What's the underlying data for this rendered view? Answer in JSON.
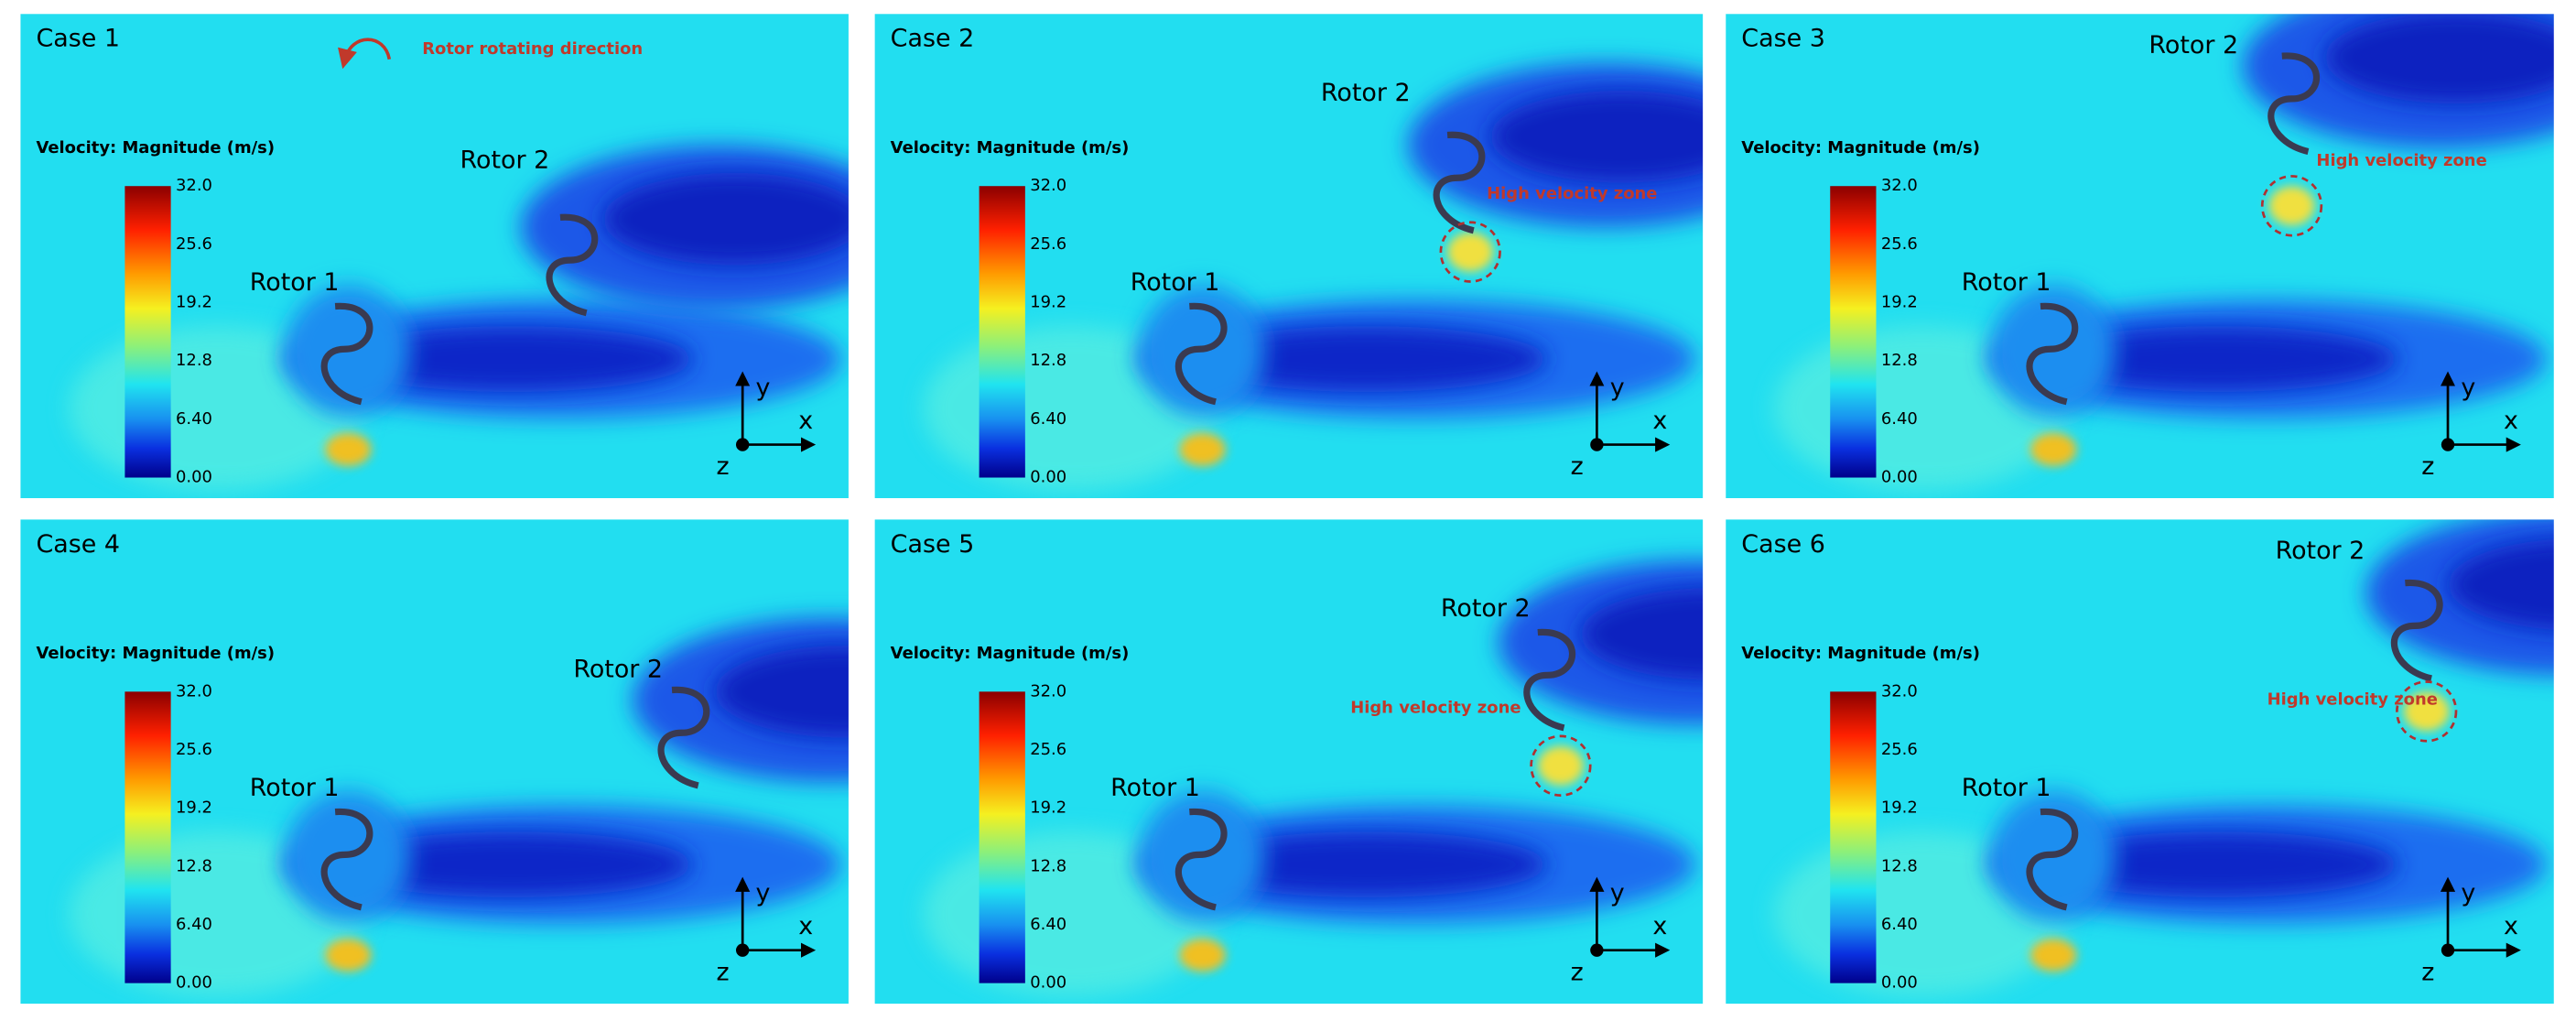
{
  "panels": [
    {
      "title": "Case 1",
      "rotor_1": "Rotor 1",
      "rotor_2": "Rotor 2",
      "colorbar": {
        "title": "Velocity: Magnitude (m/s)",
        "ticks": [
          "32.0",
          "25.6",
          "19.2",
          "12.8",
          "6.40",
          "0.00"
        ]
      },
      "axes": {
        "y": "y",
        "x": "x",
        "z": "z"
      },
      "annotation": "Rotor rotating direction"
    },
    {
      "title": "Case 2",
      "rotor_1": "Rotor 1",
      "rotor_2": "Rotor 2",
      "colorbar": {
        "title": "Velocity: Magnitude (m/s)",
        "ticks": [
          "32.0",
          "25.6",
          "19.2",
          "12.8",
          "6.40",
          "0.00"
        ]
      },
      "axes": {
        "y": "y",
        "x": "x",
        "z": "z"
      },
      "annotation": "High velocity zone"
    },
    {
      "title": "Case 3",
      "rotor_1": "Rotor 1",
      "rotor_2": "Rotor 2",
      "colorbar": {
        "title": "Velocity: Magnitude (m/s)",
        "ticks": [
          "32.0",
          "25.6",
          "19.2",
          "12.8",
          "6.40",
          "0.00"
        ]
      },
      "axes": {
        "y": "y",
        "x": "x",
        "z": "z"
      },
      "annotation": "High velocity zone"
    },
    {
      "title": "Case 4",
      "rotor_1": "Rotor 1",
      "rotor_2": "Rotor 2",
      "colorbar": {
        "title": "Velocity: Magnitude (m/s)",
        "ticks": [
          "32.0",
          "25.6",
          "19.2",
          "12.8",
          "6.40",
          "0.00"
        ]
      },
      "axes": {
        "y": "y",
        "x": "x",
        "z": "z"
      }
    },
    {
      "title": "Case 5",
      "rotor_1": "Rotor 1",
      "rotor_2": "Rotor 2",
      "colorbar": {
        "title": "Velocity: Magnitude (m/s)",
        "ticks": [
          "32.0",
          "25.6",
          "19.2",
          "12.8",
          "6.40",
          "0.00"
        ]
      },
      "axes": {
        "y": "y",
        "x": "x",
        "z": "z"
      },
      "annotation": "High velocity zone"
    },
    {
      "title": "Case 6",
      "rotor_1": "Rotor 1",
      "rotor_2": "Rotor 2",
      "colorbar": {
        "title": "Velocity: Magnitude (m/s)",
        "ticks": [
          "32.0",
          "25.6",
          "19.2",
          "12.8",
          "6.40",
          "0.00"
        ]
      },
      "axes": {
        "y": "y",
        "x": "x",
        "z": "z"
      },
      "annotation": "High velocity zone"
    }
  ]
}
